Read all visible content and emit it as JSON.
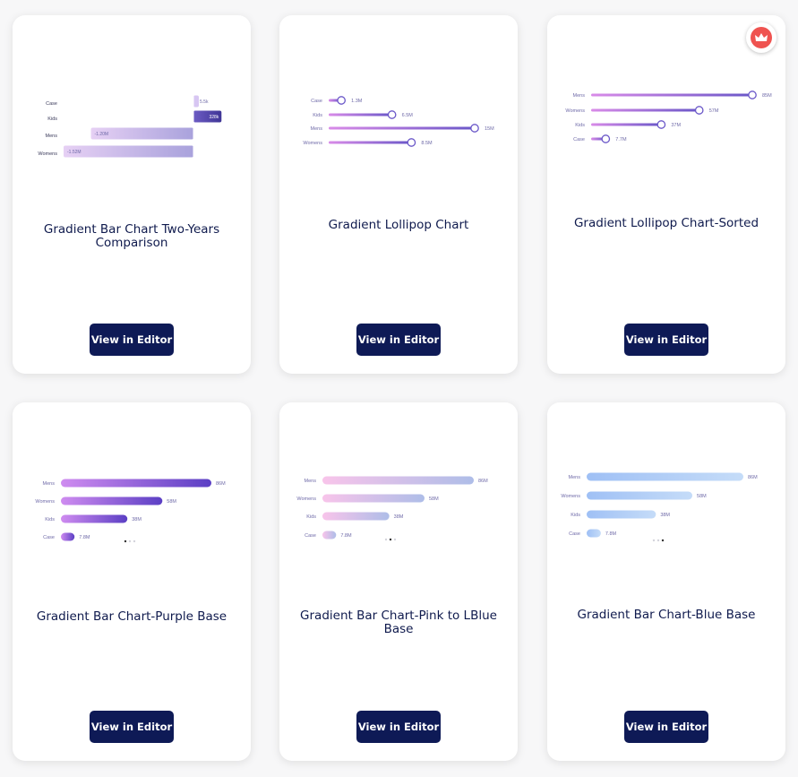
{
  "colors": {
    "button": "#0e1a56",
    "title": "#0f1a4d",
    "badge": "#ef5350"
  },
  "cards": [
    {
      "title": "Gradient Bar Chart Two-Years Comparison",
      "button_label": "View in Editor",
      "premium": false,
      "chart_data": {
        "type": "bar",
        "orientation": "horizontal-diverging",
        "categories": [
          "Case",
          "Kids",
          "Mens",
          "Womens"
        ],
        "values": [
          5.5,
          328,
          -1200,
          -1520
        ],
        "labels": [
          "5.5k",
          "328k",
          "-1.20M",
          "-1.52M"
        ]
      }
    },
    {
      "title": "Gradient Lollipop Chart",
      "button_label": "View in Editor",
      "premium": false,
      "chart_data": {
        "type": "bar",
        "style": "lollipop",
        "categories": [
          "Case",
          "Kids",
          "Mens",
          "Womens"
        ],
        "values": [
          1.3,
          6.5,
          15,
          8.5
        ],
        "labels": [
          "1.3M",
          "6.5M",
          "15M",
          "8.5M"
        ]
      }
    },
    {
      "title": "Gradient Lollipop Chart-Sorted",
      "button_label": "View in Editor",
      "premium": true,
      "chart_data": {
        "type": "bar",
        "style": "lollipop",
        "categories": [
          "Mens",
          "Womens",
          "Kids",
          "Case"
        ],
        "values": [
          85,
          57,
          37,
          7.7
        ],
        "labels": [
          "85M",
          "57M",
          "37M",
          "7.7M"
        ]
      }
    },
    {
      "title": "Gradient Bar Chart-Purple Base",
      "button_label": "View in Editor",
      "premium": false,
      "chart_data": {
        "type": "bar",
        "categories": [
          "Mens",
          "Womens",
          "Kids",
          "Case"
        ],
        "values": [
          86,
          58,
          38,
          7.8
        ],
        "labels": [
          "86M",
          "58M",
          "38M",
          "7.8M"
        ],
        "gradient": [
          "#cf8cf0",
          "#5b3fc4"
        ]
      }
    },
    {
      "title": "Gradient Bar Chart-Pink to LBlue Base",
      "button_label": "View in Editor",
      "premium": false,
      "chart_data": {
        "type": "bar",
        "categories": [
          "Mens",
          "Womens",
          "Kids",
          "Case"
        ],
        "values": [
          86,
          58,
          38,
          7.8
        ],
        "labels": [
          "86M",
          "58M",
          "38M",
          "7.8M"
        ],
        "gradient": [
          "#f8c4ea",
          "#aebde8"
        ]
      }
    },
    {
      "title": "Gradient Bar Chart-Blue Base",
      "button_label": "View in Editor",
      "premium": false,
      "chart_data": {
        "type": "bar",
        "categories": [
          "Mens",
          "Womens",
          "Kids",
          "Case"
        ],
        "values": [
          86,
          58,
          38,
          7.8
        ],
        "labels": [
          "86M",
          "58M",
          "38M",
          "7.8M"
        ],
        "gradient": [
          "#9fc0f5",
          "#c5dcf8"
        ]
      }
    }
  ]
}
